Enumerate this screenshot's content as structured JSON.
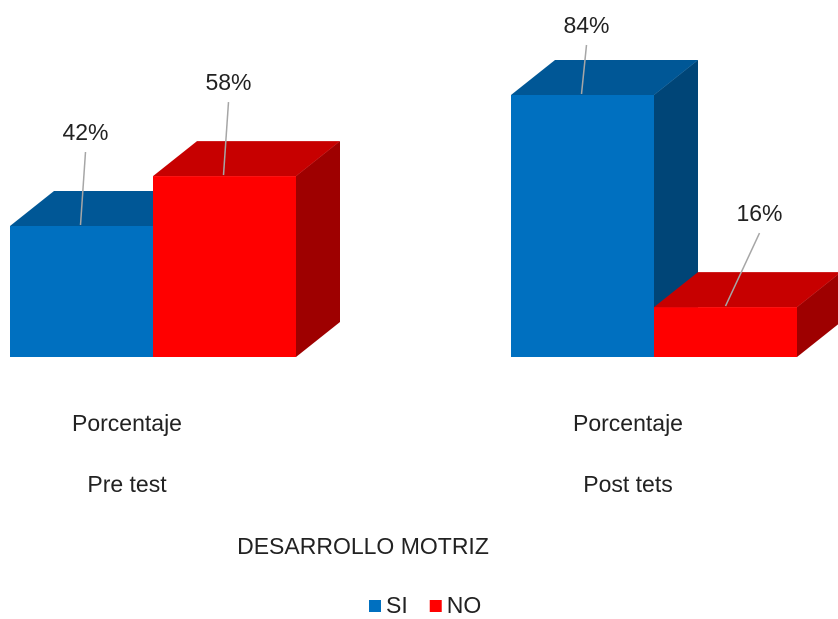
{
  "chart_data": {
    "type": "bar3d",
    "categories": [
      [
        "Porcentaje",
        "Pre test"
      ],
      [
        "Porcentaje",
        "Post tets"
      ]
    ],
    "x_label": "DESARROLLO MOTRIZ",
    "series": [
      {
        "name": "SI",
        "color": "#0070c0",
        "values": [
          42,
          84
        ],
        "value_labels": [
          "42%",
          "84%"
        ]
      },
      {
        "name": "NO",
        "color": "#ff0000",
        "values": [
          58,
          16
        ],
        "value_labels": [
          "58%",
          "16%"
        ]
      }
    ],
    "legend": "bottom"
  }
}
